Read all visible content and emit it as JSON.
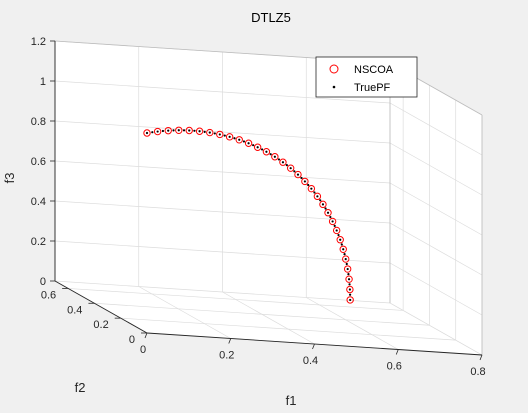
{
  "chart_data": {
    "type": "scatter",
    "projection": "3d",
    "title": "DTLZ5",
    "xlabel": "f1",
    "ylabel": "f2",
    "zlabel": "f3",
    "xlim": [
      0,
      0.8
    ],
    "ylim": [
      0,
      0.7
    ],
    "zlim": [
      0,
      1.2
    ],
    "xticks": [
      "0",
      "0.2",
      "0.4",
      "0.6",
      "0.8"
    ],
    "yticks": [
      "0",
      "0.2",
      "0.4",
      "0.6"
    ],
    "zticks": [
      "0",
      "0.2",
      "0.4",
      "0.6",
      "0.8",
      "1",
      "1.2"
    ],
    "grid": true,
    "legend": {
      "position": "top-right",
      "entries": [
        "NSCOA",
        "TruePF"
      ]
    },
    "colors": {
      "nscoa": "#ff0000",
      "truepf": "#000000"
    },
    "series": [
      {
        "name": "NSCOA",
        "marker": "circle",
        "note_curve_param": "points lie on f1=cos(t)/sqrt2, f2=cos(t)/sqrt2, f3=sin(t)",
        "t_deg": [
          0,
          3,
          6,
          9,
          12,
          15,
          18,
          21,
          24,
          27,
          30,
          33,
          36,
          39,
          42,
          45,
          48,
          51,
          54,
          57,
          60,
          63,
          66,
          69,
          72,
          75,
          78,
          81,
          84,
          87,
          90
        ]
      },
      {
        "name": "TruePF",
        "marker": "dot",
        "t_deg": [
          0,
          1.5,
          3,
          4.5,
          6,
          7.5,
          9,
          10.5,
          12,
          13.5,
          15,
          16.5,
          18,
          19.5,
          21,
          22.5,
          24,
          25.5,
          27,
          28.5,
          30,
          31.5,
          33,
          34.5,
          36,
          37.5,
          39,
          40.5,
          42,
          43.5,
          45,
          46.5,
          48,
          49.5,
          51,
          52.5,
          54,
          55.5,
          57,
          58.5,
          60,
          61.5,
          63,
          64.5,
          66,
          67.5,
          69,
          70.5,
          72,
          73.5,
          75,
          76.5,
          78,
          79.5,
          81,
          82.5,
          84,
          85.5,
          87,
          88.5,
          90
        ]
      }
    ]
  }
}
